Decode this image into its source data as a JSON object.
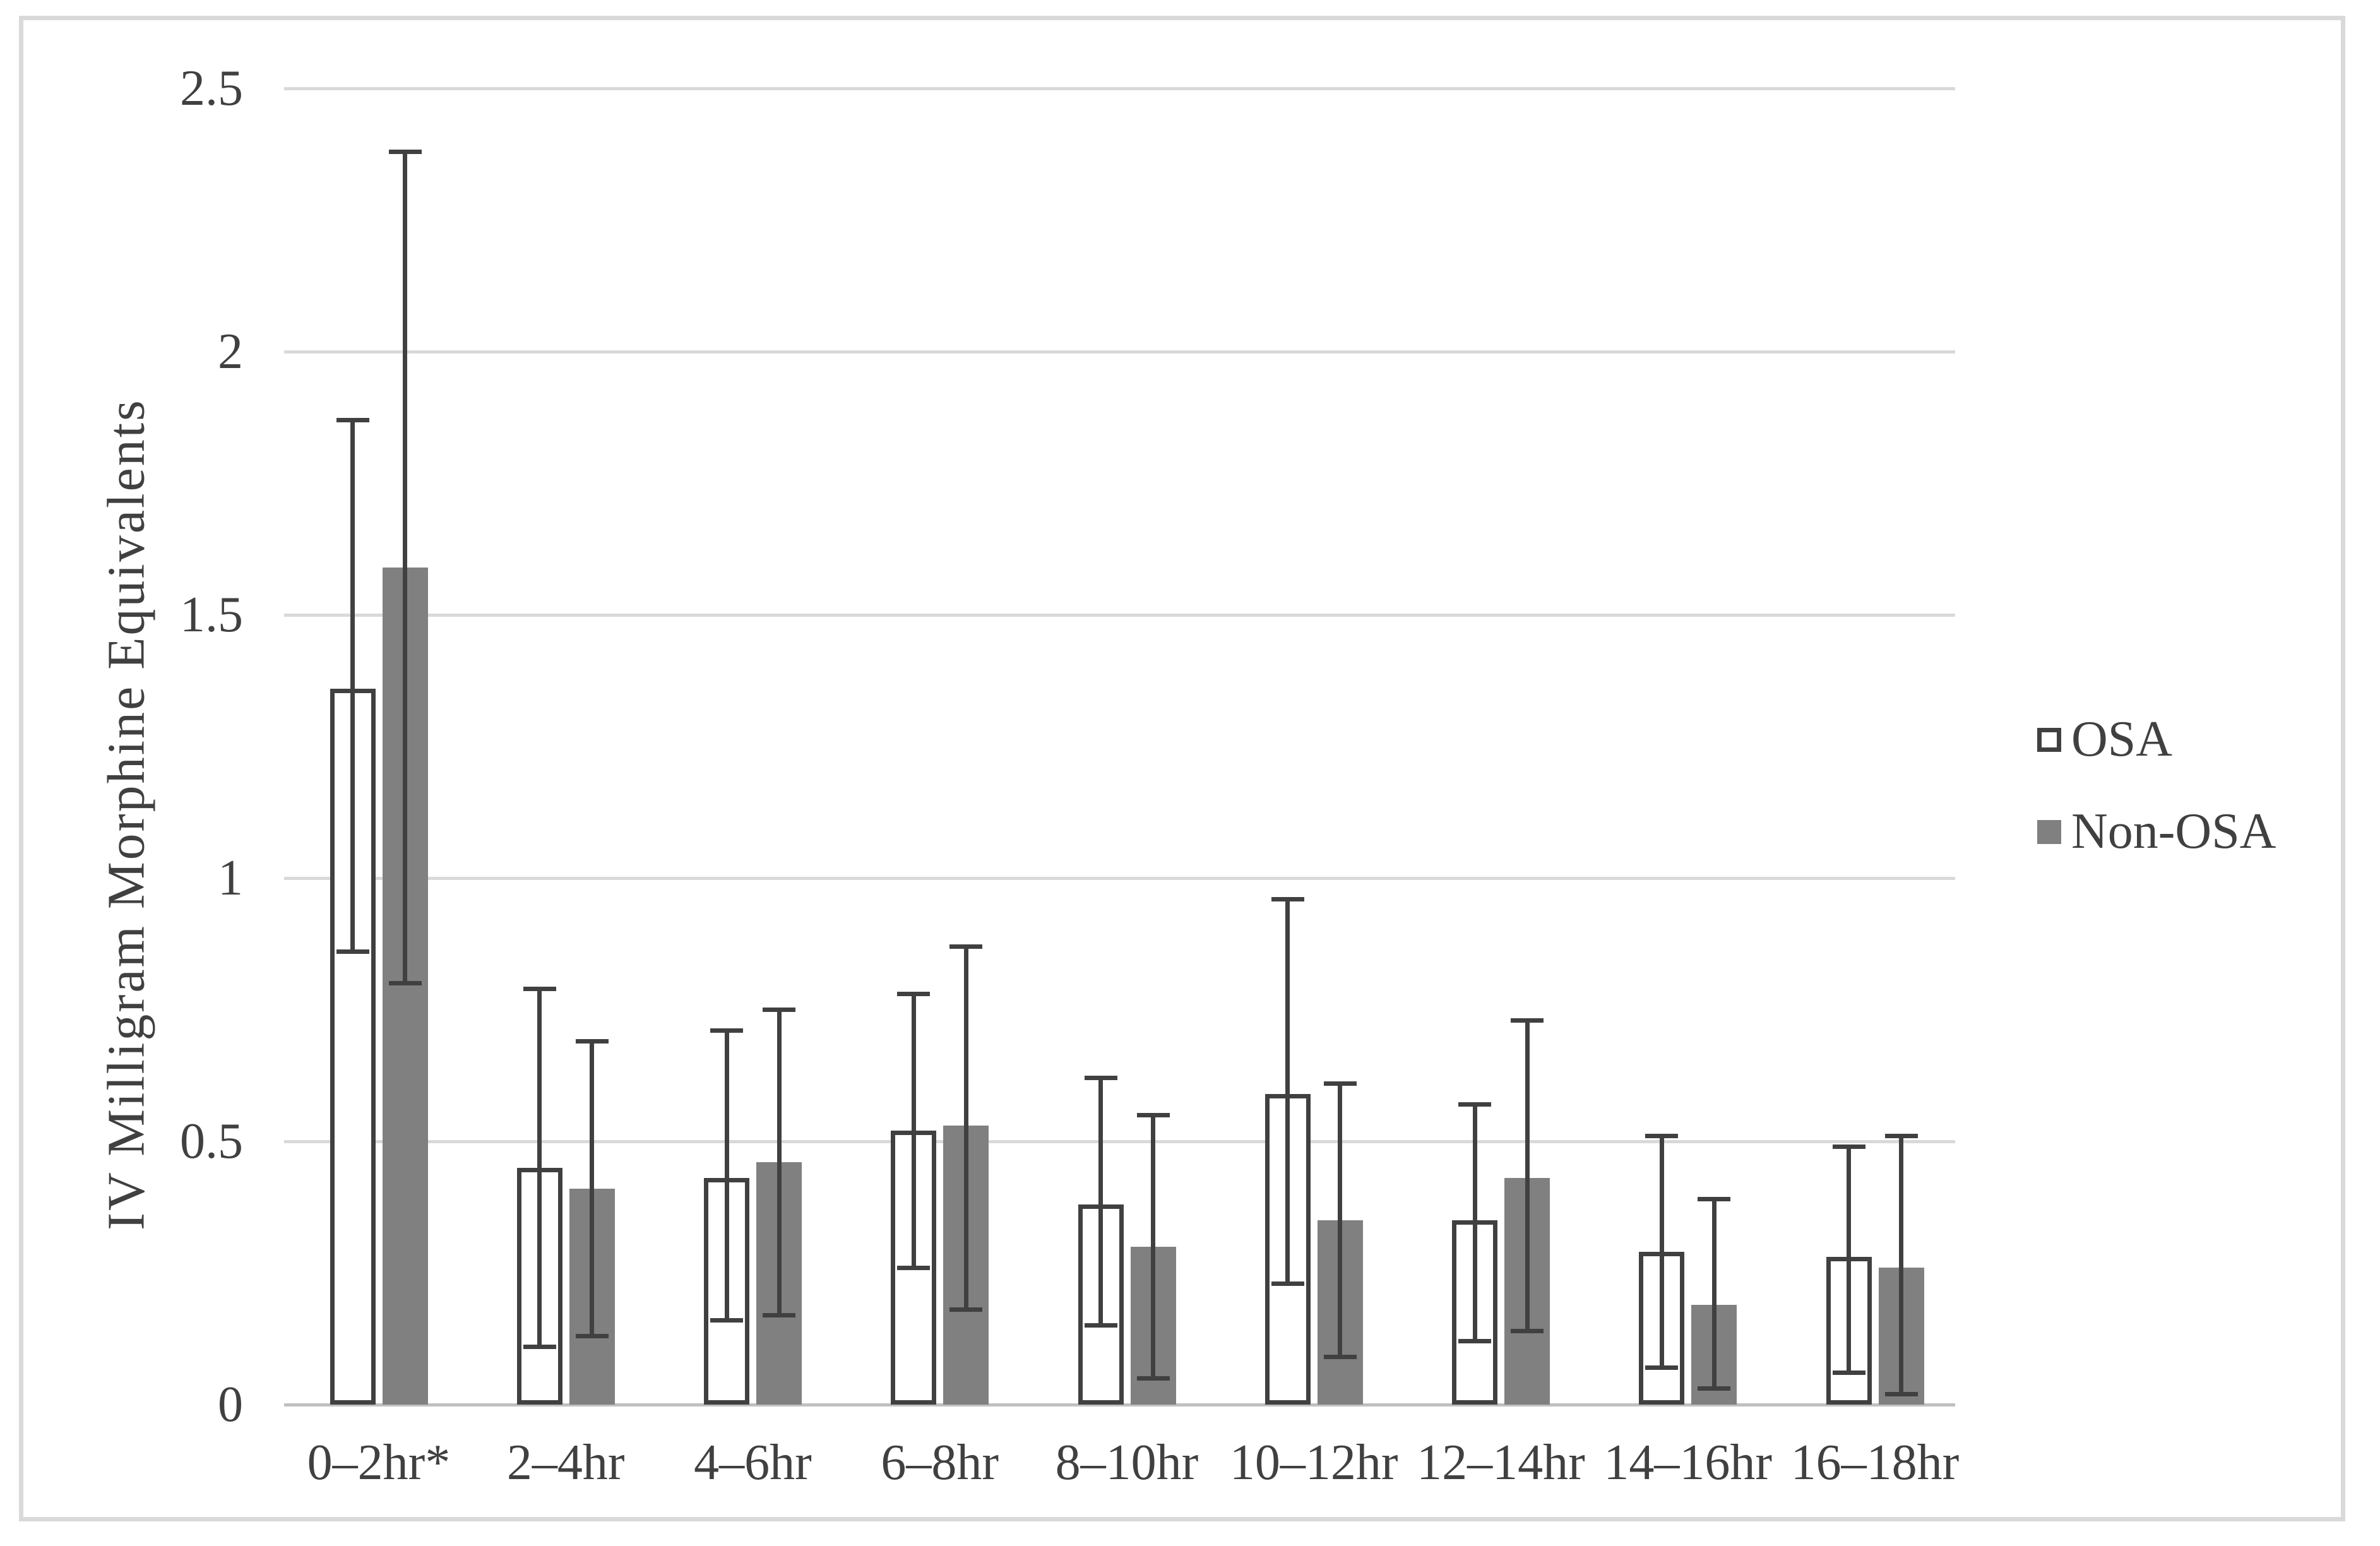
{
  "chart_data": {
    "type": "bar",
    "title": "",
    "xlabel": "",
    "ylabel": "IV Milligram Morphine Equivalents",
    "ylim": [
      0,
      2.5
    ],
    "yticks": [
      0,
      0.5,
      1,
      1.5,
      2,
      2.5
    ],
    "ytick_labels": [
      "0",
      "0.5",
      "1",
      "1.5",
      "2",
      "2.5"
    ],
    "grid": true,
    "legend_position": "right",
    "categories": [
      "0–2hr*",
      "2–4hr",
      "4–6hr",
      "6–8hr",
      "8–10hr",
      "10–12hr",
      "12–14hr",
      "14–16hr",
      "16–18hr"
    ],
    "series": [
      {
        "name": "OSA",
        "fill": "#FFFFFF",
        "outline": "#404040",
        "values": [
          1.36,
          0.45,
          0.43,
          0.52,
          0.38,
          0.59,
          0.35,
          0.29,
          0.28
        ],
        "error_low": [
          0.86,
          0.11,
          0.16,
          0.26,
          0.15,
          0.23,
          0.12,
          0.07,
          0.06
        ],
        "error_high": [
          1.87,
          0.79,
          0.71,
          0.78,
          0.62,
          0.96,
          0.57,
          0.51,
          0.49
        ]
      },
      {
        "name": "Non-OSA",
        "fill": "#808080",
        "outline": "#808080",
        "values": [
          1.59,
          0.41,
          0.46,
          0.53,
          0.3,
          0.35,
          0.43,
          0.19,
          0.26
        ],
        "error_low": [
          0.8,
          0.13,
          0.17,
          0.18,
          0.05,
          0.09,
          0.14,
          0.03,
          0.02
        ],
        "error_high": [
          2.38,
          0.69,
          0.75,
          0.87,
          0.55,
          0.61,
          0.73,
          0.39,
          0.51
        ]
      }
    ],
    "colors": {
      "gridline": "#D9D9D9",
      "baseline": "#C0C0C0",
      "error_bar": "#404040",
      "text": "#404040",
      "frame_border": "#D9D9D9",
      "background": "#FFFFFF"
    }
  }
}
